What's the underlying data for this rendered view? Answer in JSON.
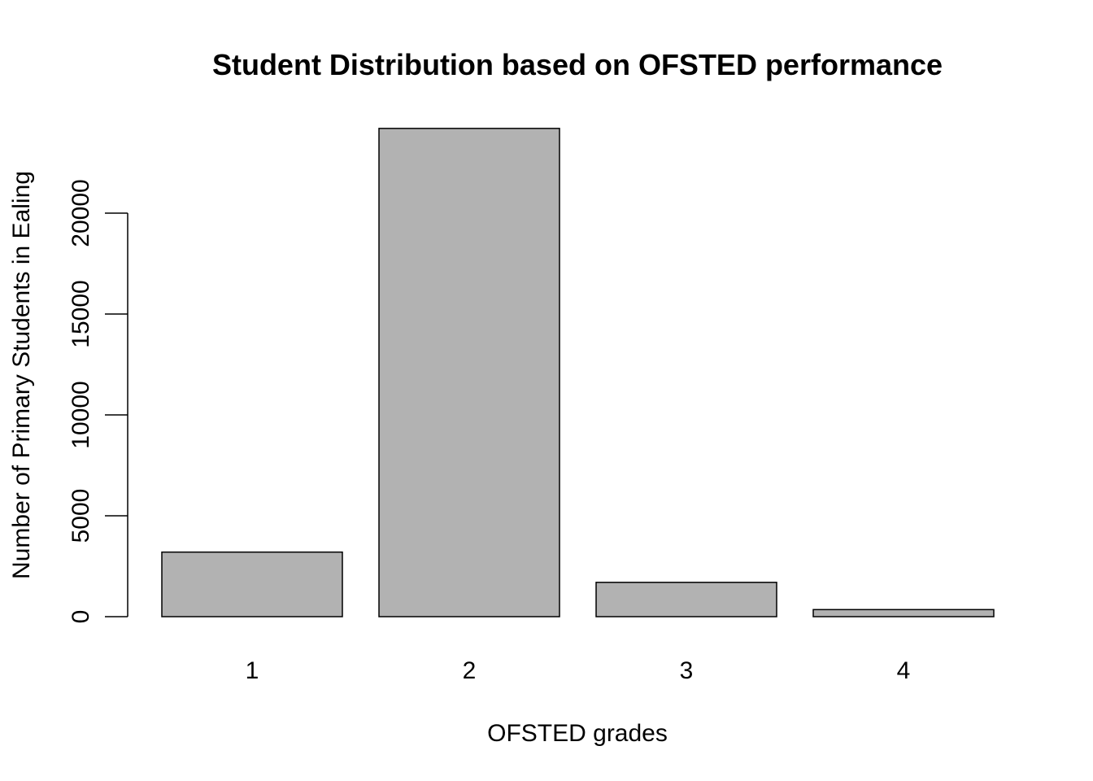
{
  "chart_data": {
    "type": "bar",
    "title": "Student Distribution based on OFSTED performance",
    "xlabel": "OFSTED grades",
    "ylabel": "Number of Primary Students in Ealing",
    "categories": [
      "1",
      "2",
      "3",
      "4"
    ],
    "values": [
      3200,
      24200,
      1700,
      350
    ],
    "yticks": [
      0,
      5000,
      10000,
      15000,
      20000
    ],
    "ylim": [
      0,
      24200
    ],
    "grid": false,
    "legend": "none",
    "bar_color": "#b2b2b2",
    "border_color": "#000000"
  }
}
